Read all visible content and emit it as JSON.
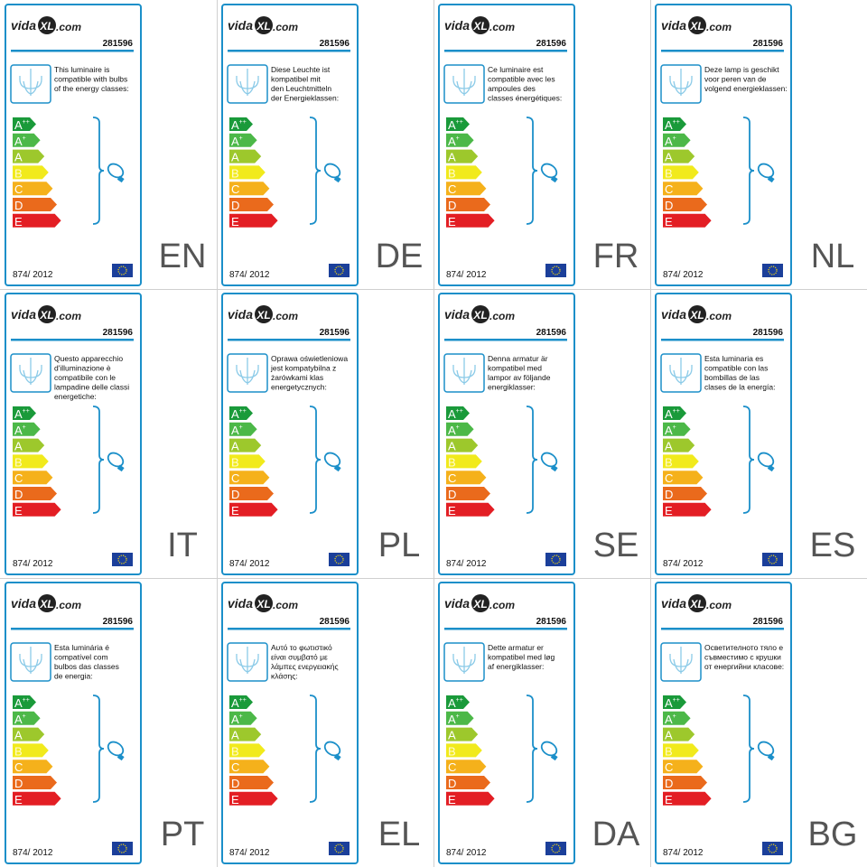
{
  "logo": {
    "left": "vida",
    "mark": "XL",
    "right": ".com"
  },
  "product_number": "281596",
  "regulation": "874/ 2012",
  "classes": [
    {
      "letter": "A",
      "sup": "++",
      "color": "#1a9a3a"
    },
    {
      "letter": "A",
      "sup": "+",
      "color": "#4cb848"
    },
    {
      "letter": "A",
      "color": "#9dc82c"
    },
    {
      "letter": "B",
      "color": "#f1ea1c"
    },
    {
      "letter": "C",
      "color": "#f5b11b"
    },
    {
      "letter": "D",
      "color": "#ea6a1c"
    },
    {
      "letter": "E",
      "color": "#e31e24"
    }
  ],
  "labels": [
    {
      "lang": "EN",
      "text": [
        "This luminaire is",
        "compatible with bulbs",
        "of the energy classes:"
      ]
    },
    {
      "lang": "DE",
      "text": [
        "Diese Leuchte ist",
        "kompatibel mit",
        "den Leuchtmitteln",
        "der Energieklassen:"
      ]
    },
    {
      "lang": "FR",
      "text": [
        "Ce luminaire est",
        "compatible avec les",
        "ampoules des",
        "classes énergétiques:"
      ]
    },
    {
      "lang": "NL",
      "text": [
        "Deze lamp is geschikt",
        "voor peren van de",
        "volgend energieklassen:"
      ]
    },
    {
      "lang": "IT",
      "text": [
        "Questo apparecchio",
        "d'illuminazione è",
        "compatibile con le",
        "lampadine delle classi",
        "energetiche:"
      ]
    },
    {
      "lang": "PL",
      "text": [
        "Oprawa oświetleniowa",
        "jest kompatybilna z",
        "żarówkami klas",
        "energetycznych:"
      ]
    },
    {
      "lang": "SE",
      "text": [
        "Denna armatur är",
        "kompatibel med",
        "lampor av följande",
        "energiklasser:"
      ]
    },
    {
      "lang": "ES",
      "text": [
        "Esta luminaria es",
        "compatible con las",
        "bombillas de las",
        "clases de la energía:"
      ]
    },
    {
      "lang": "PT",
      "text": [
        "Esta luminária é",
        "compatível com",
        "bulbos das classes",
        "de energia:"
      ]
    },
    {
      "lang": "EL",
      "text": [
        "Αυτό το φωτιστικό",
        "είναι συμβατό με",
        "λάμπες ενεργειακής",
        "κλάσης:"
      ]
    },
    {
      "lang": "DA",
      "text": [
        "Dette armatur er",
        "kompatibel med løg",
        "af energiklasser:"
      ]
    },
    {
      "lang": "BG",
      "text": [
        "Осветителното тяло е",
        "съвместимо с крушки",
        "от енергийни класове:"
      ]
    }
  ]
}
